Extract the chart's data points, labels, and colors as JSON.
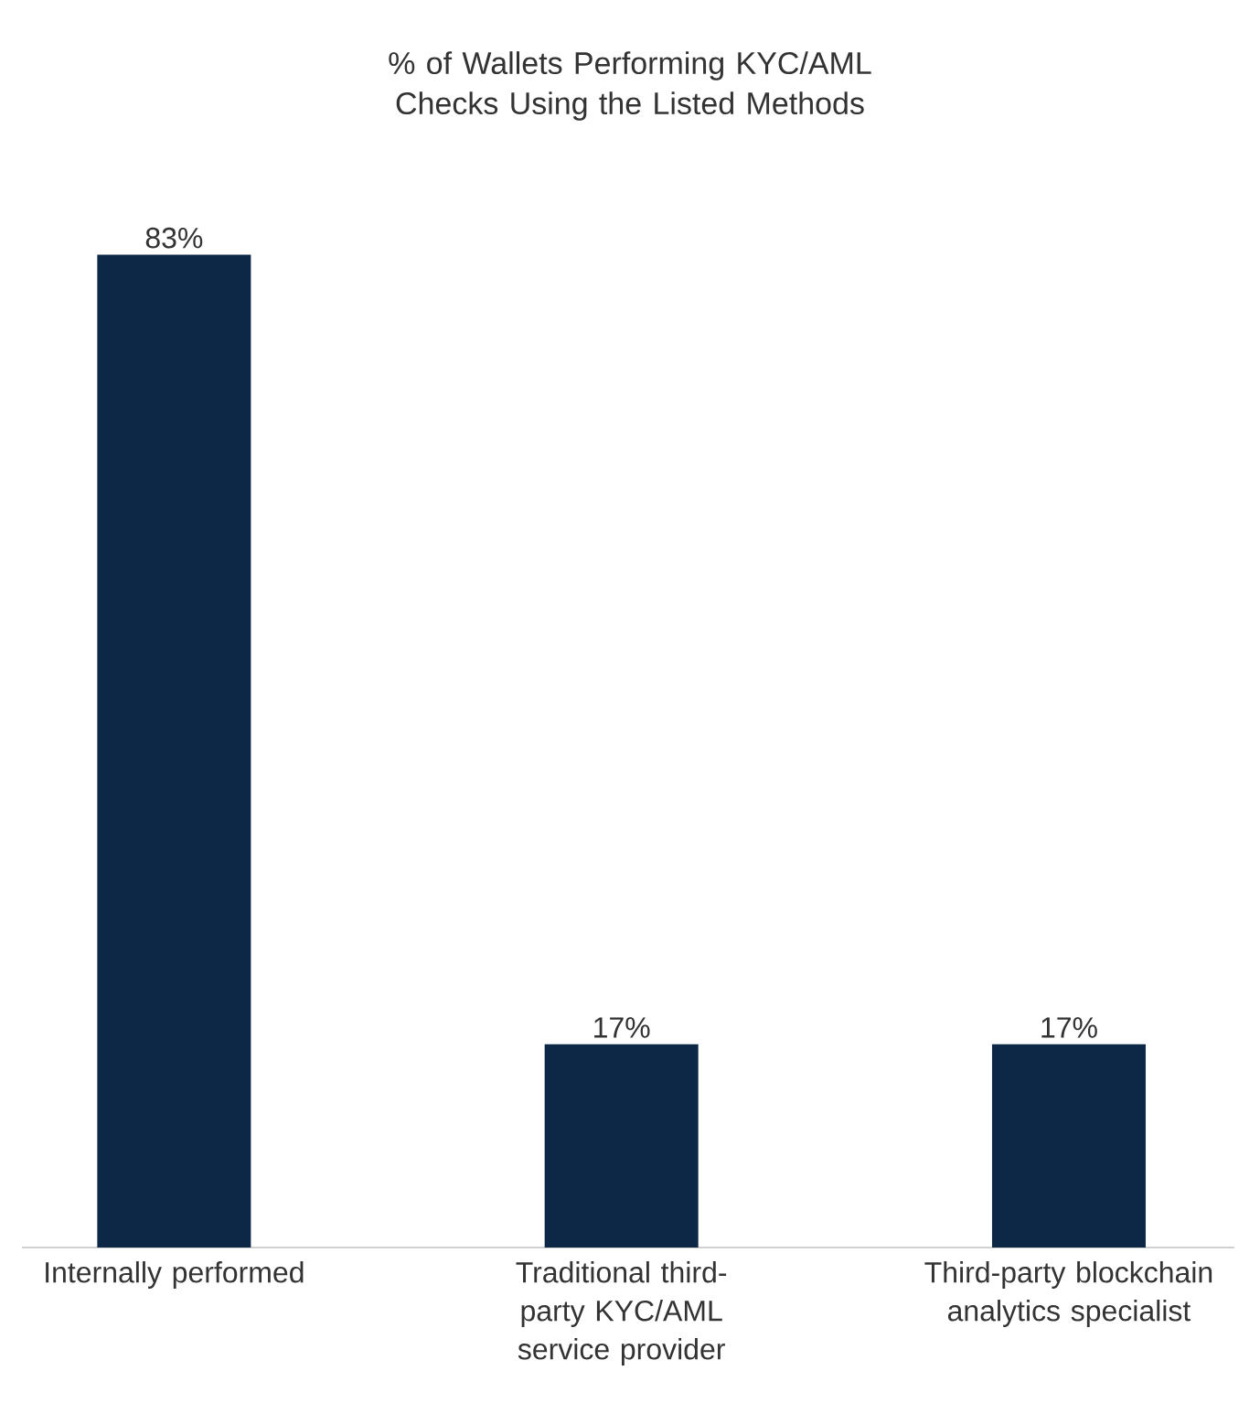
{
  "chart_data": {
    "type": "bar",
    "title": "% of Wallets Performing KYC/AML Checks Using the Listed Methods",
    "categories": [
      "Internally performed",
      "Traditional third-party KYC/AML service provider",
      "Third-party blockchain analytics specialist"
    ],
    "values": [
      83,
      17,
      17
    ],
    "value_labels": [
      "83%",
      "17%",
      "17%"
    ],
    "color": "#0d2846"
  }
}
